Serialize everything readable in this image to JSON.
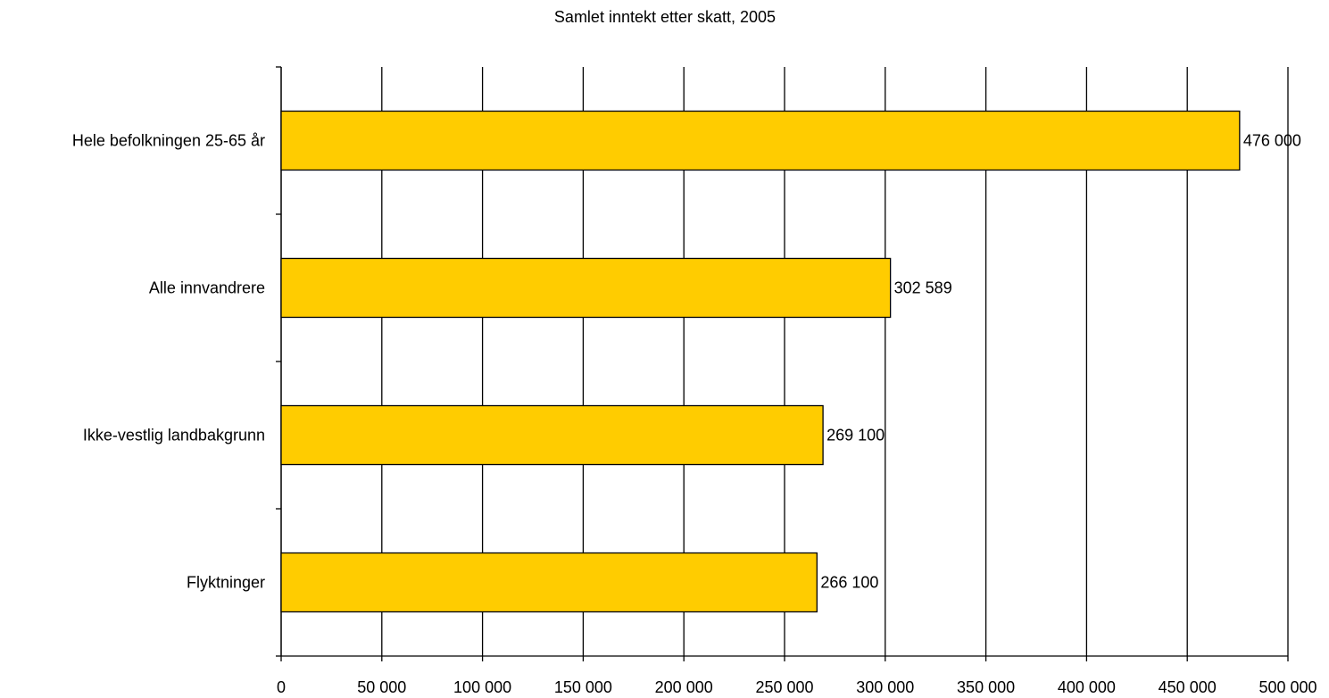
{
  "chart_data": {
    "type": "barh",
    "title": "Samlet inntekt etter skatt, 2005",
    "categories": [
      "Hele befolkningen 25-65 år",
      "Alle innvandrere",
      "Ikke-vestlig landbakgrunn",
      "Flyktninger"
    ],
    "values": [
      476000,
      302589,
      269100,
      266100
    ],
    "value_labels": [
      "476 000",
      "302 589",
      "269 100",
      "266 100"
    ],
    "color": "#ffcc00",
    "xlim": [
      0,
      500000
    ],
    "xticks": [
      0,
      {
        "value": 50000,
        "label": "50 000"
      },
      {
        "value": 100000,
        "label": "100 000"
      },
      {
        "value": 150000,
        "label": "150 000"
      },
      {
        "value": 200000,
        "label": "200 000"
      },
      {
        "value": 250000,
        "label": "250 000"
      },
      {
        "value": 300000,
        "label": "300 000"
      },
      {
        "value": 350000,
        "label": "350 000"
      },
      {
        "value": 400000,
        "label": "400 000"
      },
      {
        "value": 450000,
        "label": "450 000"
      },
      {
        "value": 500000,
        "label": "500 000"
      }
    ],
    "grid": true
  }
}
